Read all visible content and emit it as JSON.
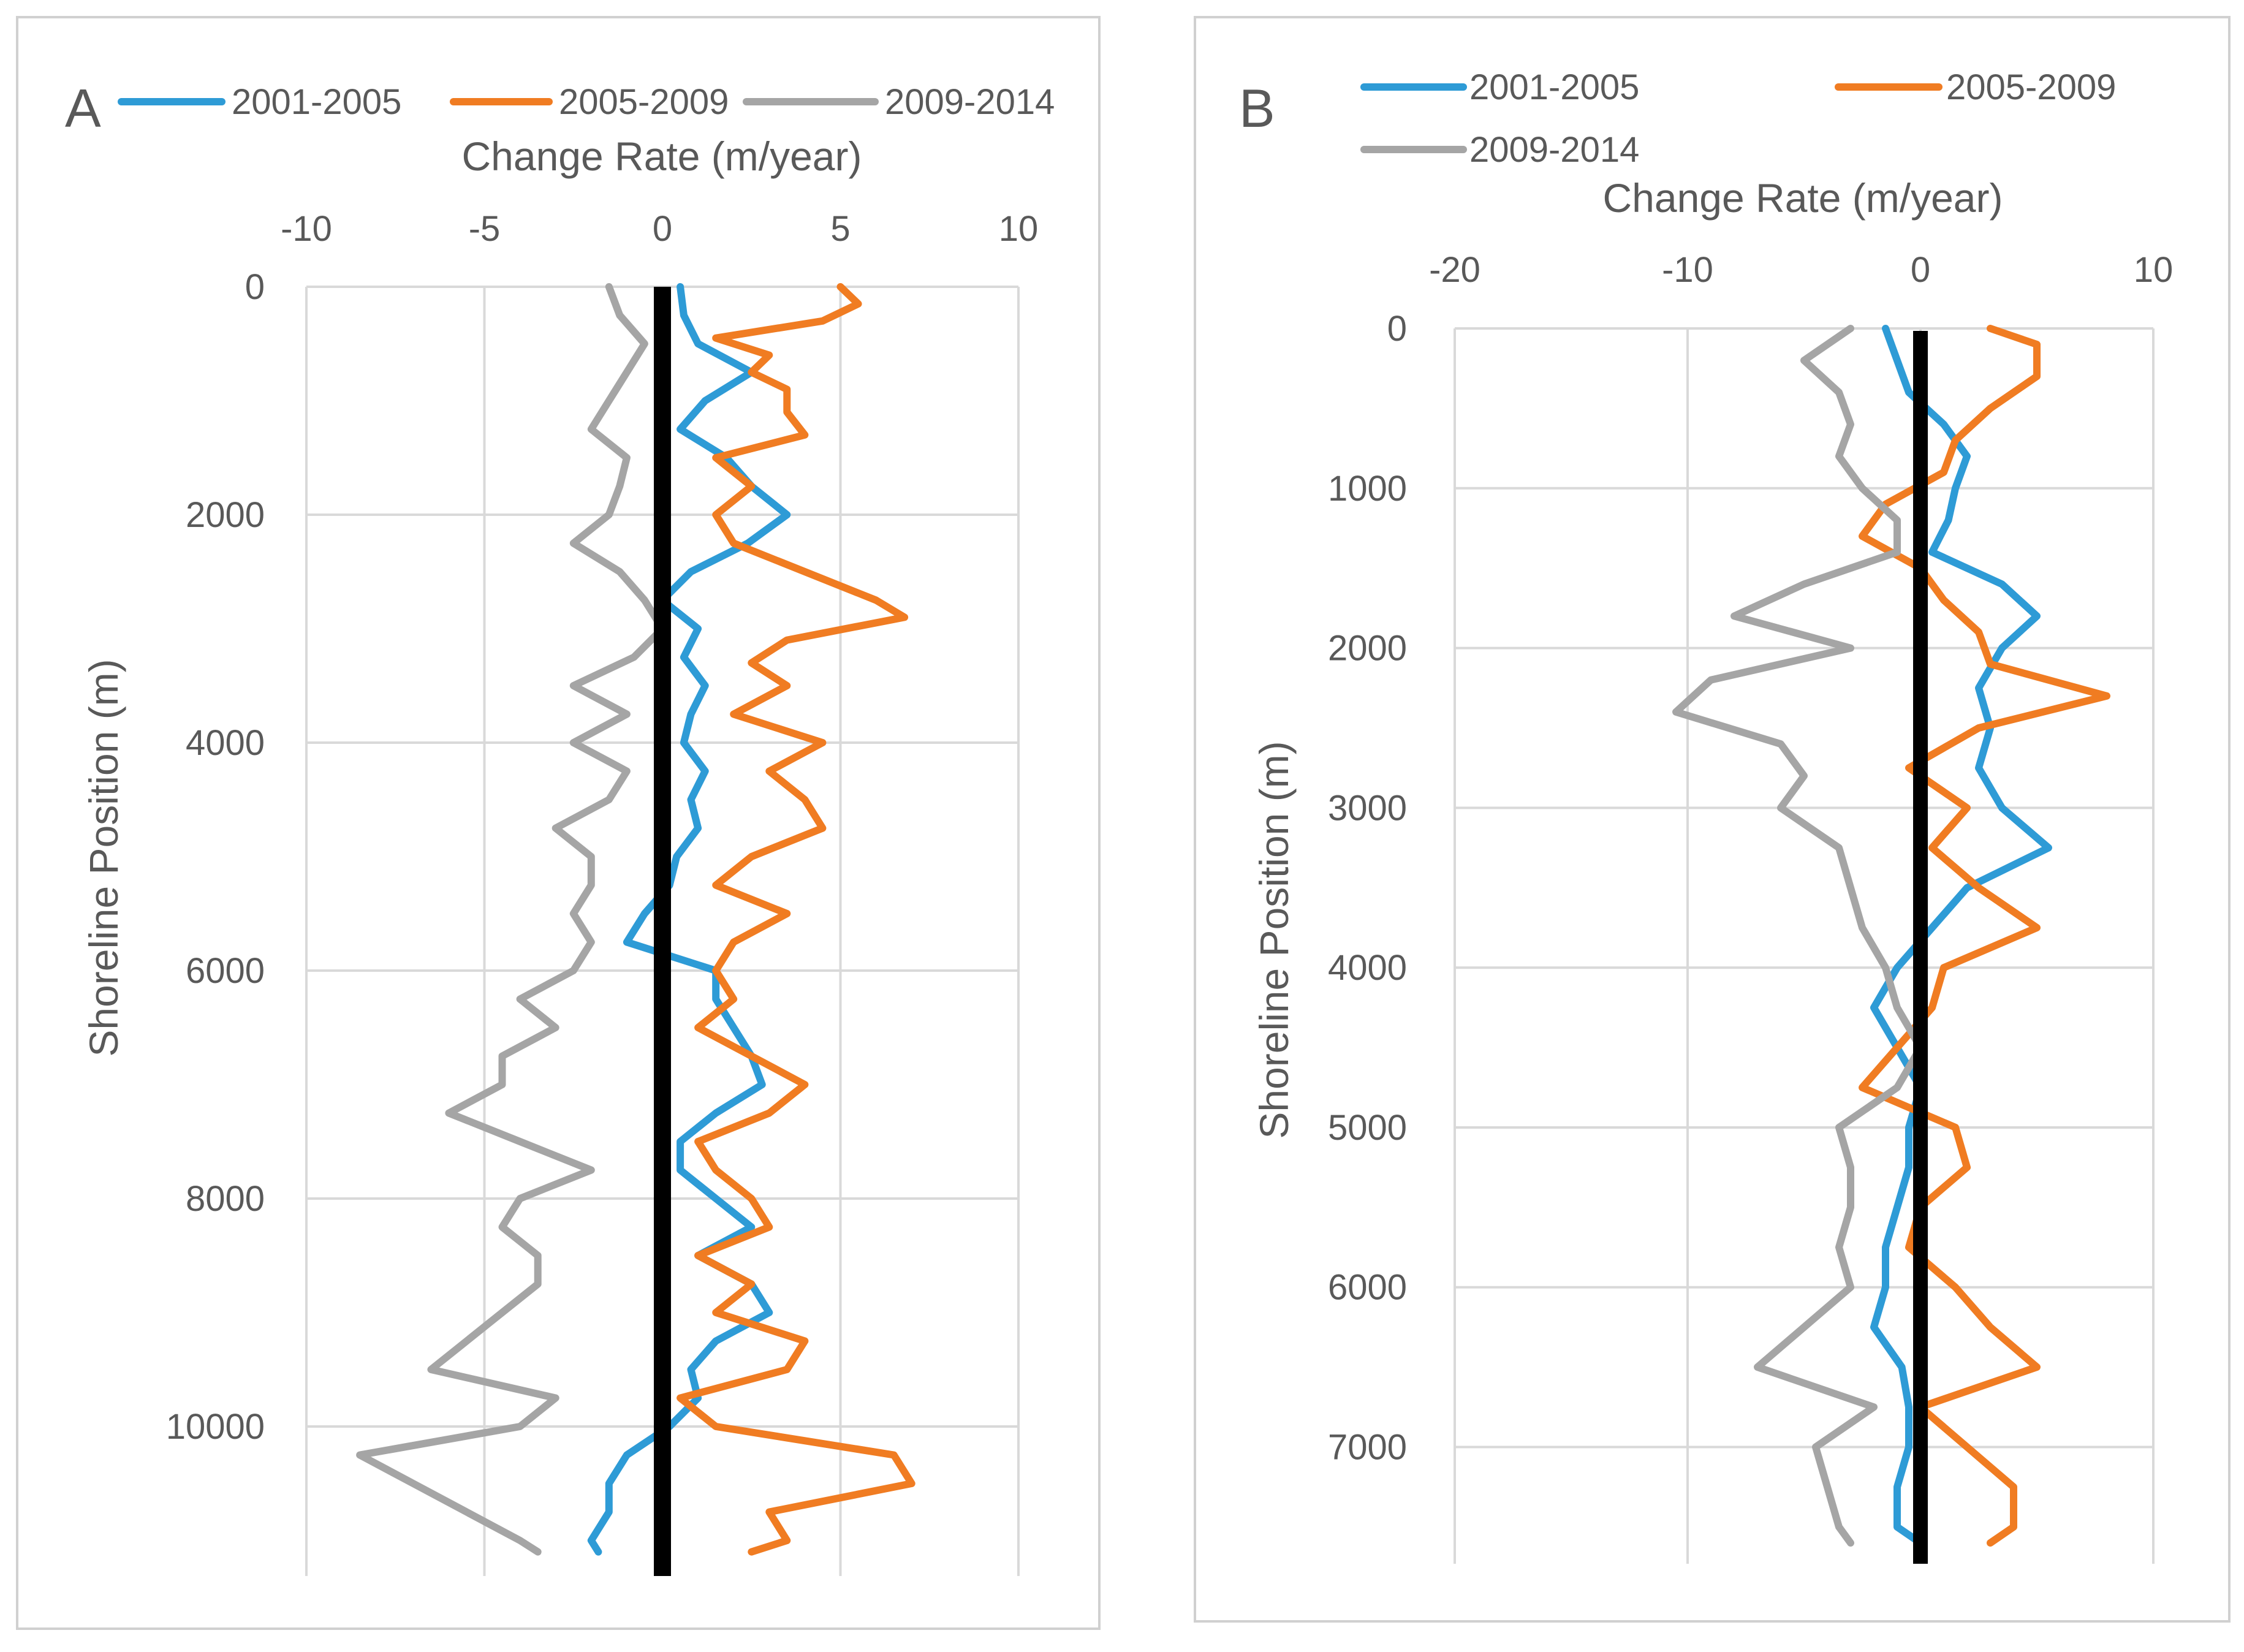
{
  "chart_data": [
    {
      "panel_label": "A",
      "type": "line",
      "orientation": "vertical-profile",
      "xlabel": "Change Rate (m/year)",
      "ylabel": "Shoreline Position (m)",
      "xlim": [
        -10,
        10
      ],
      "ylim": [
        0,
        11000
      ],
      "x_ticks": [
        -10,
        -5,
        0,
        5,
        10
      ],
      "y_ticks": [
        0,
        2000,
        4000,
        6000,
        8000,
        10000
      ],
      "x_tick_labels": [
        "-10",
        "-5",
        "0",
        "5",
        "10"
      ],
      "y_tick_labels": [
        "0",
        "2000",
        "4000",
        "6000",
        "8000",
        "10000"
      ],
      "reference_line_at": 0,
      "legend": [
        "2001-2005",
        "2005-2009",
        "2009-2014"
      ],
      "series": [
        {
          "name": "2001-2005",
          "color": "#2E9BD6",
          "points": [
            [
              0,
              0.5
            ],
            [
              250,
              0.6
            ],
            [
              500,
              1.0
            ],
            [
              750,
              2.5
            ],
            [
              1000,
              1.2
            ],
            [
              1250,
              0.5
            ],
            [
              1500,
              1.8
            ],
            [
              1750,
              2.5
            ],
            [
              2000,
              3.5
            ],
            [
              2250,
              2.4
            ],
            [
              2500,
              0.8
            ],
            [
              2750,
              0
            ],
            [
              3000,
              1.0
            ],
            [
              3250,
              0.6
            ],
            [
              3500,
              1.2
            ],
            [
              3750,
              0.8
            ],
            [
              4000,
              0.6
            ],
            [
              4250,
              1.2
            ],
            [
              4500,
              0.8
            ],
            [
              4750,
              1.0
            ],
            [
              5000,
              0.4
            ],
            [
              5250,
              0.2
            ],
            [
              5500,
              -0.5
            ],
            [
              5750,
              -1.0
            ],
            [
              6000,
              1.5
            ],
            [
              6250,
              1.5
            ],
            [
              6500,
              2.0
            ],
            [
              6750,
              2.5
            ],
            [
              7000,
              2.8
            ],
            [
              7250,
              1.5
            ],
            [
              7500,
              0.5
            ],
            [
              7750,
              0.5
            ],
            [
              8000,
              1.5
            ],
            [
              8250,
              2.5
            ],
            [
              8500,
              1.0
            ],
            [
              8750,
              2.5
            ],
            [
              9000,
              3.0
            ],
            [
              9250,
              1.5
            ],
            [
              9500,
              0.8
            ],
            [
              9750,
              1.0
            ],
            [
              10000,
              0.2
            ],
            [
              10250,
              -1.0
            ],
            [
              10500,
              -1.5
            ],
            [
              10750,
              -1.5
            ],
            [
              11000,
              -2.0
            ],
            [
              11100,
              -1.8
            ]
          ]
        },
        {
          "name": "2005-2009",
          "color": "#F07C22",
          "points": [
            [
              0,
              5.0
            ],
            [
              150,
              5.5
            ],
            [
              300,
              4.5
            ],
            [
              450,
              1.5
            ],
            [
              600,
              3.0
            ],
            [
              750,
              2.5
            ],
            [
              900,
              3.5
            ],
            [
              1100,
              3.5
            ],
            [
              1300,
              4.0
            ],
            [
              1500,
              1.5
            ],
            [
              1750,
              2.5
            ],
            [
              2000,
              1.5
            ],
            [
              2250,
              2.0
            ],
            [
              2500,
              4.0
            ],
            [
              2750,
              6.0
            ],
            [
              2900,
              6.8
            ],
            [
              3100,
              3.5
            ],
            [
              3300,
              2.5
            ],
            [
              3500,
              3.5
            ],
            [
              3750,
              2.0
            ],
            [
              4000,
              4.5
            ],
            [
              4250,
              3.0
            ],
            [
              4500,
              4.0
            ],
            [
              4750,
              4.5
            ],
            [
              5000,
              2.5
            ],
            [
              5250,
              1.5
            ],
            [
              5500,
              3.5
            ],
            [
              5750,
              2.0
            ],
            [
              6000,
              1.5
            ],
            [
              6250,
              2.0
            ],
            [
              6500,
              1.0
            ],
            [
              6750,
              2.5
            ],
            [
              7000,
              4.0
            ],
            [
              7250,
              3.0
            ],
            [
              7500,
              1.0
            ],
            [
              7750,
              1.5
            ],
            [
              8000,
              2.5
            ],
            [
              8250,
              3.0
            ],
            [
              8500,
              1.0
            ],
            [
              8750,
              2.5
            ],
            [
              9000,
              1.5
            ],
            [
              9250,
              4.0
            ],
            [
              9500,
              3.5
            ],
            [
              9750,
              0.5
            ],
            [
              10000,
              1.5
            ],
            [
              10250,
              6.5
            ],
            [
              10500,
              7.0
            ],
            [
              10750,
              3.0
            ],
            [
              11000,
              3.5
            ],
            [
              11100,
              2.5
            ]
          ]
        },
        {
          "name": "2009-2014",
          "color": "#A5A5A5",
          "points": [
            [
              0,
              -1.5
            ],
            [
              250,
              -1.2
            ],
            [
              500,
              -0.5
            ],
            [
              750,
              -1.0
            ],
            [
              1000,
              -1.5
            ],
            [
              1250,
              -2.0
            ],
            [
              1500,
              -1.0
            ],
            [
              1750,
              -1.2
            ],
            [
              2000,
              -1.5
            ],
            [
              2250,
              -2.5
            ],
            [
              2500,
              -1.2
            ],
            [
              2750,
              -0.5
            ],
            [
              3000,
              0
            ],
            [
              3250,
              -0.8
            ],
            [
              3500,
              -2.5
            ],
            [
              3750,
              -1.0
            ],
            [
              4000,
              -2.5
            ],
            [
              4250,
              -1.0
            ],
            [
              4500,
              -1.5
            ],
            [
              4750,
              -3.0
            ],
            [
              5000,
              -2.0
            ],
            [
              5250,
              -2.0
            ],
            [
              5500,
              -2.5
            ],
            [
              5750,
              -2.0
            ],
            [
              6000,
              -2.5
            ],
            [
              6250,
              -4.0
            ],
            [
              6500,
              -3.0
            ],
            [
              6750,
              -4.5
            ],
            [
              7000,
              -4.5
            ],
            [
              7250,
              -6.0
            ],
            [
              7500,
              -4.0
            ],
            [
              7750,
              -2.0
            ],
            [
              8000,
              -4.0
            ],
            [
              8250,
              -4.5
            ],
            [
              8500,
              -3.5
            ],
            [
              8750,
              -3.5
            ],
            [
              9000,
              -4.5
            ],
            [
              9250,
              -5.5
            ],
            [
              9500,
              -6.5
            ],
            [
              9750,
              -3.0
            ],
            [
              10000,
              -4.0
            ],
            [
              10250,
              -8.5
            ],
            [
              10500,
              -7.0
            ],
            [
              10750,
              -5.5
            ],
            [
              11000,
              -4.0
            ],
            [
              11100,
              -3.5
            ]
          ]
        }
      ]
    },
    {
      "panel_label": "B",
      "type": "line",
      "orientation": "vertical-profile",
      "xlabel": "Change Rate (m/year)",
      "ylabel": "Shoreline Position (m)",
      "xlim": [
        -20,
        10
      ],
      "ylim": [
        0,
        7600
      ],
      "x_ticks": [
        -20,
        -10,
        0,
        10
      ],
      "y_ticks": [
        0,
        1000,
        2000,
        3000,
        4000,
        5000,
        6000,
        7000
      ],
      "x_tick_labels": [
        "-20",
        "-10",
        "0",
        "10"
      ],
      "y_tick_labels": [
        "0",
        "1000",
        "2000",
        "3000",
        "4000",
        "5000",
        "6000",
        "7000"
      ],
      "reference_line_at": 0,
      "legend": [
        "2001-2005",
        "2005-2009",
        "2009-2014"
      ],
      "series": [
        {
          "name": "2001-2005",
          "color": "#2E9BD6",
          "points": [
            [
              0,
              -1.5
            ],
            [
              200,
              -1.0
            ],
            [
              400,
              -0.5
            ],
            [
              600,
              1.0
            ],
            [
              800,
              2.0
            ],
            [
              1000,
              1.5
            ],
            [
              1200,
              1.2
            ],
            [
              1400,
              0.5
            ],
            [
              1600,
              3.5
            ],
            [
              1800,
              5.0
            ],
            [
              2000,
              3.5
            ],
            [
              2250,
              2.5
            ],
            [
              2500,
              3.0
            ],
            [
              2750,
              2.5
            ],
            [
              3000,
              3.5
            ],
            [
              3250,
              5.5
            ],
            [
              3500,
              2.0
            ],
            [
              3750,
              0.5
            ],
            [
              4000,
              -1.0
            ],
            [
              4250,
              -2.0
            ],
            [
              4500,
              -1.0
            ],
            [
              4750,
              0
            ],
            [
              5000,
              -0.5
            ],
            [
              5250,
              -0.5
            ],
            [
              5500,
              -1.0
            ],
            [
              5750,
              -1.5
            ],
            [
              6000,
              -1.5
            ],
            [
              6250,
              -2.0
            ],
            [
              6500,
              -0.8
            ],
            [
              6750,
              -0.5
            ],
            [
              7000,
              -0.5
            ],
            [
              7250,
              -1.0
            ],
            [
              7500,
              -1.0
            ],
            [
              7600,
              0
            ]
          ]
        },
        {
          "name": "2005-2009",
          "color": "#F07C22",
          "points": [
            [
              0,
              3.0
            ],
            [
              100,
              5.0
            ],
            [
              300,
              5.0
            ],
            [
              500,
              3.0
            ],
            [
              700,
              1.5
            ],
            [
              900,
              1.0
            ],
            [
              1100,
              -1.5
            ],
            [
              1300,
              -2.5
            ],
            [
              1500,
              0
            ],
            [
              1700,
              1.0
            ],
            [
              1900,
              2.5
            ],
            [
              2100,
              3.0
            ],
            [
              2300,
              8.0
            ],
            [
              2500,
              2.5
            ],
            [
              2750,
              -0.5
            ],
            [
              3000,
              2.0
            ],
            [
              3250,
              0.5
            ],
            [
              3500,
              2.5
            ],
            [
              3750,
              5.0
            ],
            [
              4000,
              1.0
            ],
            [
              4250,
              0.5
            ],
            [
              4500,
              -1.0
            ],
            [
              4750,
              -2.5
            ],
            [
              5000,
              1.5
            ],
            [
              5250,
              2.0
            ],
            [
              5500,
              0
            ],
            [
              5750,
              -0.5
            ],
            [
              6000,
              1.5
            ],
            [
              6250,
              3.0
            ],
            [
              6500,
              5.0
            ],
            [
              6750,
              0
            ],
            [
              7000,
              2.0
            ],
            [
              7250,
              4.0
            ],
            [
              7500,
              4.0
            ],
            [
              7600,
              3.0
            ]
          ]
        },
        {
          "name": "2009-2014",
          "color": "#A5A5A5",
          "points": [
            [
              0,
              -3.0
            ],
            [
              200,
              -5.0
            ],
            [
              400,
              -3.5
            ],
            [
              600,
              -3.0
            ],
            [
              800,
              -3.5
            ],
            [
              1000,
              -2.5
            ],
            [
              1200,
              -1.0
            ],
            [
              1400,
              -1.0
            ],
            [
              1600,
              -5.0
            ],
            [
              1800,
              -8.0
            ],
            [
              2000,
              -3.0
            ],
            [
              2200,
              -9.0
            ],
            [
              2400,
              -10.5
            ],
            [
              2600,
              -6.0
            ],
            [
              2800,
              -5.0
            ],
            [
              3000,
              -6.0
            ],
            [
              3250,
              -3.5
            ],
            [
              3500,
              -3.0
            ],
            [
              3750,
              -2.5
            ],
            [
              4000,
              -1.5
            ],
            [
              4250,
              -1.0
            ],
            [
              4500,
              0
            ],
            [
              4750,
              -1.0
            ],
            [
              5000,
              -3.5
            ],
            [
              5250,
              -3.0
            ],
            [
              5500,
              -3.0
            ],
            [
              5750,
              -3.5
            ],
            [
              6000,
              -3.0
            ],
            [
              6250,
              -5.0
            ],
            [
              6500,
              -7.0
            ],
            [
              6750,
              -2.0
            ],
            [
              7000,
              -4.5
            ],
            [
              7250,
              -4.0
            ],
            [
              7500,
              -3.5
            ],
            [
              7600,
              -3.0
            ]
          ]
        }
      ]
    }
  ]
}
